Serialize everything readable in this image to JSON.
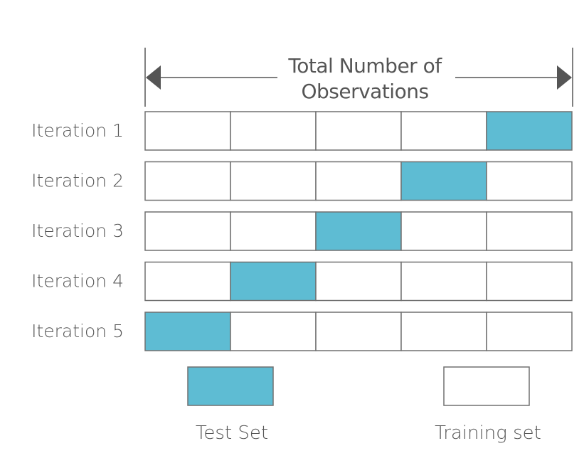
{
  "diagram": {
    "title_lines": [
      "Total Number of",
      "Observations"
    ],
    "folds": 5,
    "colors": {
      "test": "#5ebcd3",
      "train": "#ffffff",
      "border": "#707070",
      "text": "#555555"
    },
    "iterations": [
      {
        "label": "Iteration 1",
        "test_fold": 5
      },
      {
        "label": "Iteration 2",
        "test_fold": 4
      },
      {
        "label": "Iteration 3",
        "test_fold": 3
      },
      {
        "label": "Iteration 4",
        "test_fold": 2
      },
      {
        "label": "Iteration 5",
        "test_fold": 1
      }
    ],
    "legend": {
      "test_label": "Test Set",
      "train_label": "Training set"
    }
  }
}
